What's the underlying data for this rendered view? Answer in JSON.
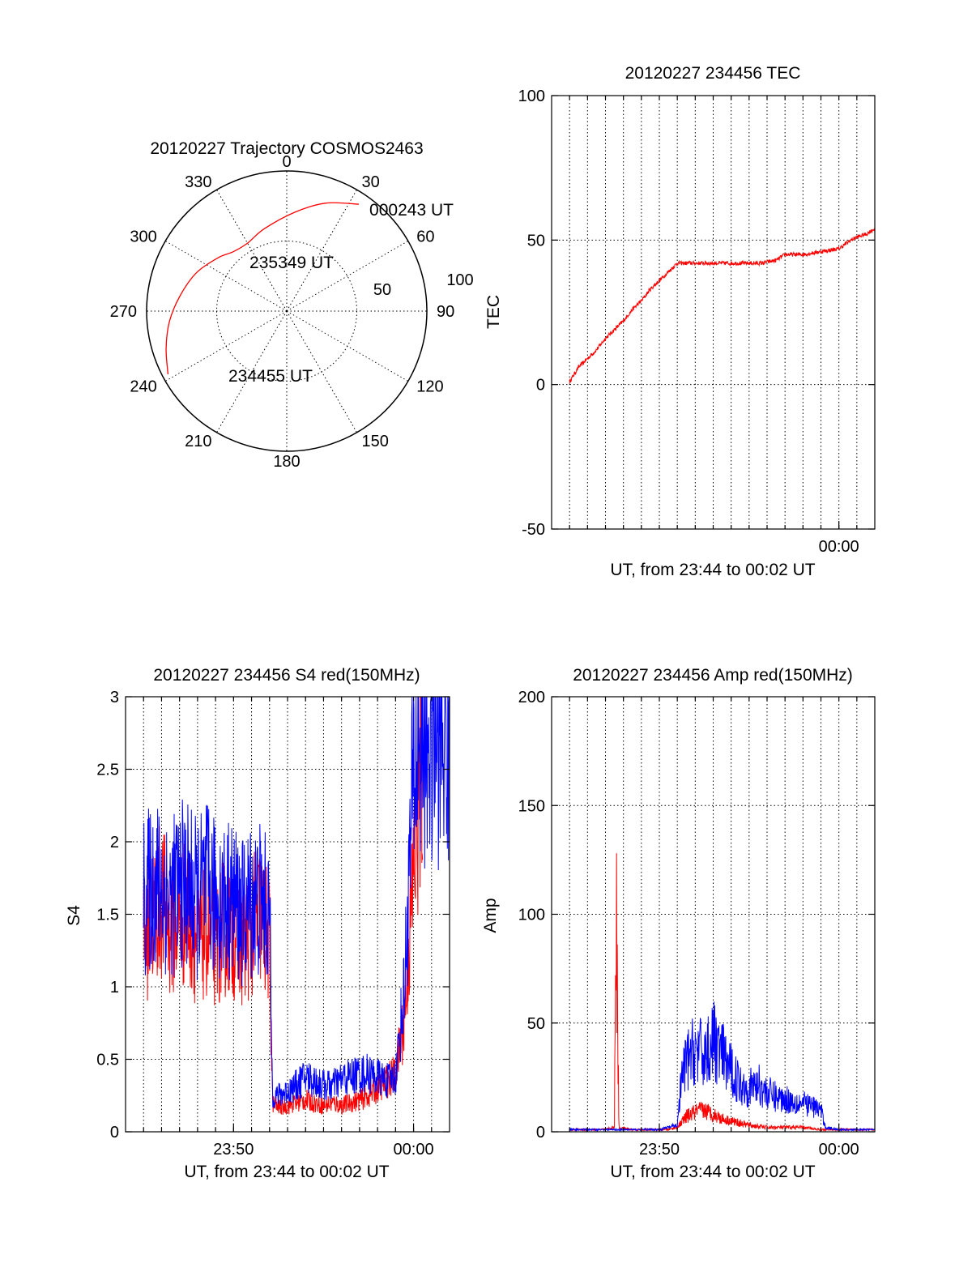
{
  "chart_data": [
    {
      "type": "polar",
      "title": "20120227 Trajectory COSMOS2463",
      "azimuth_labels": [
        "0",
        "30",
        "60",
        "90",
        "120",
        "150",
        "180",
        "210",
        "240",
        "270",
        "300",
        "330"
      ],
      "radius_labels": [
        "50",
        "100"
      ],
      "rlim": [
        0,
        100
      ],
      "grid": true,
      "colors": {
        "track": "#ff0000"
      },
      "series": [
        {
          "points": [
            {
              "azimuth": 242,
              "zenith": 96
            },
            {
              "azimuth": 253,
              "zenith": 90
            },
            {
              "azimuth": 265,
              "zenith": 84
            },
            {
              "azimuth": 278,
              "zenith": 77
            },
            {
              "azimuth": 293,
              "zenith": 70
            },
            {
              "azimuth": 308,
              "zenith": 62
            },
            {
              "azimuth": 318,
              "zenith": 57
            },
            {
              "azimuth": 330,
              "zenith": 56
            },
            {
              "azimuth": 345,
              "zenith": 61
            },
            {
              "azimuth": 5,
              "zenith": 71
            },
            {
              "azimuth": 20,
              "zenith": 82
            },
            {
              "azimuth": 34,
              "zenith": 92
            }
          ]
        }
      ],
      "annotations": [
        {
          "text": "234455 UT",
          "at": "start"
        },
        {
          "text": "235349 UT",
          "at": "middle"
        },
        {
          "text": "000243 UT",
          "at": "end"
        }
      ]
    },
    {
      "type": "line",
      "title": "20120227 234456 TEC",
      "xlabel": "UT, from 23:44 to 00:02 UT",
      "ylabel": "TEC",
      "xlim": [
        "23:44",
        "00:02"
      ],
      "ylim": [
        -50,
        100
      ],
      "yticks": [
        -50,
        0,
        50,
        100
      ],
      "xticklabels": [
        {
          "x": "00:00",
          "label": "00:00"
        }
      ],
      "grid": true,
      "colors": {
        "red": "#ff0000"
      },
      "series": [
        {
          "color": "red",
          "points": [
            [
              "23:45:00",
              1
            ],
            [
              "23:45:30",
              6
            ],
            [
              "23:46:00",
              9
            ],
            [
              "23:46:30",
              12
            ],
            [
              "23:47:00",
              16
            ],
            [
              "23:47:30",
              19
            ],
            [
              "23:48:00",
              22
            ],
            [
              "23:48:30",
              26
            ],
            [
              "23:49:00",
              29
            ],
            [
              "23:49:30",
              33
            ],
            [
              "23:50:00",
              36
            ],
            [
              "23:50:30",
              39
            ],
            [
              "23:51:00",
              42
            ],
            [
              "23:51:20",
              42
            ],
            [
              "23:52:00",
              42
            ],
            [
              "23:53:00",
              42
            ],
            [
              "23:54:00",
              42
            ],
            [
              "23:55:00",
              42
            ],
            [
              "23:55:40",
              42
            ],
            [
              "23:56:30",
              43
            ],
            [
              "23:57:00",
              45
            ],
            [
              "23:58:00",
              45
            ],
            [
              "23:59:00",
              46
            ],
            [
              "00:00:00",
              47
            ],
            [
              "00:00:40",
              50
            ],
            [
              "00:01:00",
              51
            ],
            [
              "00:01:30",
              52
            ],
            [
              "00:02:00",
              54
            ]
          ]
        }
      ]
    },
    {
      "type": "line",
      "title": "20120227 234456 S4 red(150MHz)",
      "xlabel": "UT, from 23:44 to 00:02 UT",
      "ylabel": "S4",
      "xlim": [
        "23:44",
        "00:02"
      ],
      "ylim": [
        0,
        3
      ],
      "yticks": [
        0,
        0.5,
        1,
        1.5,
        2,
        2.5,
        3
      ],
      "xticklabels": [
        {
          "x": "23:50",
          "label": "23:50"
        },
        {
          "x": "00:00",
          "label": "00:00"
        }
      ],
      "grid": true,
      "colors": {
        "red": "#ff0000",
        "blue": "#0000ff"
      },
      "series": [
        {
          "color": "red",
          "points": [
            [
              "23:45:00",
              1.3
            ],
            [
              "23:45:30",
              1.5
            ],
            [
              "23:46:00",
              1.6
            ],
            [
              "23:46:30",
              1.4
            ],
            [
              "23:47:00",
              1.5
            ],
            [
              "23:47:30",
              1.5
            ],
            [
              "23:48:00",
              1.3
            ],
            [
              "23:48:30",
              1.4
            ],
            [
              "23:49:00",
              1.3
            ],
            [
              "23:49:30",
              1.4
            ],
            [
              "23:50:00",
              1.4
            ],
            [
              "23:50:30",
              1.3
            ],
            [
              "23:51:00",
              1.4
            ],
            [
              "23:51:30",
              1.5
            ],
            [
              "23:52:00",
              1.3
            ],
            [
              "23:52:10",
              0.2
            ],
            [
              "23:52:30",
              0.17
            ],
            [
              "23:53:00",
              0.18
            ],
            [
              "23:53:30",
              0.2
            ],
            [
              "23:54:00",
              0.22
            ],
            [
              "23:54:30",
              0.2
            ],
            [
              "23:55:00",
              0.18
            ],
            [
              "23:55:30",
              0.2
            ],
            [
              "23:56:00",
              0.18
            ],
            [
              "23:56:30",
              0.2
            ],
            [
              "23:57:00",
              0.22
            ],
            [
              "23:57:30",
              0.25
            ],
            [
              "23:58:00",
              0.3
            ],
            [
              "23:58:30",
              0.35
            ],
            [
              "23:59:00",
              0.4
            ],
            [
              "23:59:30",
              0.8
            ],
            [
              "00:00:00",
              1.8
            ],
            [
              "00:00:30",
              2.6
            ]
          ]
        },
        {
          "color": "blue",
          "points": [
            [
              "23:45:00",
              1.6
            ],
            [
              "23:45:30",
              1.7
            ],
            [
              "23:46:00",
              1.7
            ],
            [
              "23:46:30",
              1.6
            ],
            [
              "23:47:00",
              1.7
            ],
            [
              "23:47:30",
              1.7
            ],
            [
              "23:48:00",
              1.6
            ],
            [
              "23:48:30",
              1.7
            ],
            [
              "23:49:00",
              1.6
            ],
            [
              "23:49:30",
              1.6
            ],
            [
              "23:50:00",
              1.6
            ],
            [
              "23:50:30",
              1.5
            ],
            [
              "23:51:00",
              1.6
            ],
            [
              "23:51:30",
              1.6
            ],
            [
              "23:52:00",
              1.5
            ],
            [
              "23:52:10",
              0.25
            ],
            [
              "23:52:30",
              0.25
            ],
            [
              "23:53:00",
              0.28
            ],
            [
              "23:53:30",
              0.32
            ],
            [
              "23:54:00",
              0.38
            ],
            [
              "23:54:30",
              0.35
            ],
            [
              "23:55:00",
              0.32
            ],
            [
              "23:55:30",
              0.32
            ],
            [
              "23:56:00",
              0.36
            ],
            [
              "23:56:30",
              0.38
            ],
            [
              "23:57:00",
              0.4
            ],
            [
              "23:57:30",
              0.4
            ],
            [
              "23:58:00",
              0.38
            ],
            [
              "23:58:30",
              0.35
            ],
            [
              "23:59:00",
              0.38
            ],
            [
              "23:59:30",
              1.0
            ],
            [
              "00:00:00",
              2.5
            ],
            [
              "00:00:30",
              2.8
            ],
            [
              "00:01:00",
              2.7
            ],
            [
              "00:01:30",
              2.8
            ],
            [
              "00:02:00",
              2.7
            ]
          ]
        }
      ]
    },
    {
      "type": "line",
      "title": "20120227 234456 Amp red(150MHz)",
      "xlabel": "UT, from 23:44 to 00:02 UT",
      "ylabel": "Amp",
      "xlim": [
        "23:44",
        "00:02"
      ],
      "ylim": [
        0,
        200
      ],
      "yticks": [
        0,
        50,
        100,
        150,
        200
      ],
      "xticklabels": [
        {
          "x": "23:50",
          "label": "23:50"
        },
        {
          "x": "00:00",
          "label": "00:00"
        }
      ],
      "grid": true,
      "colors": {
        "red": "#ff0000",
        "blue": "#0000ff"
      },
      "series": [
        {
          "color": "red",
          "points": [
            [
              "23:45:00",
              1
            ],
            [
              "23:46:00",
              1
            ],
            [
              "23:47:00",
              1
            ],
            [
              "23:47:30",
              2
            ],
            [
              "23:47:35",
              113
            ],
            [
              "23:47:40",
              60
            ],
            [
              "23:47:45",
              2
            ],
            [
              "23:48:30",
              1
            ],
            [
              "23:49:30",
              1
            ],
            [
              "23:50:30",
              1
            ],
            [
              "23:51:00",
              2
            ],
            [
              "23:51:30",
              7
            ],
            [
              "23:52:00",
              9
            ],
            [
              "23:52:30",
              10
            ],
            [
              "23:53:00",
              8
            ],
            [
              "23:53:30",
              6
            ],
            [
              "23:54:00",
              5
            ],
            [
              "23:54:30",
              4
            ],
            [
              "23:55:00",
              3
            ],
            [
              "23:56:00",
              2
            ],
            [
              "23:57:00",
              2
            ],
            [
              "23:58:00",
              2
            ],
            [
              "23:59:00",
              1
            ],
            [
              "00:00:00",
              1
            ],
            [
              "00:01:00",
              1
            ],
            [
              "00:02:00",
              1
            ]
          ]
        },
        {
          "color": "blue",
          "points": [
            [
              "23:45:00",
              1
            ],
            [
              "23:46:00",
              1
            ],
            [
              "23:47:00",
              1
            ],
            [
              "23:48:00",
              1
            ],
            [
              "23:49:00",
              1
            ],
            [
              "23:50:00",
              1
            ],
            [
              "23:51:00",
              3
            ],
            [
              "23:51:15",
              25
            ],
            [
              "23:51:30",
              32
            ],
            [
              "23:52:00",
              38
            ],
            [
              "23:52:30",
              35
            ],
            [
              "23:53:00",
              42
            ],
            [
              "23:53:30",
              35
            ],
            [
              "23:54:00",
              28
            ],
            [
              "23:54:30",
              22
            ],
            [
              "23:55:00",
              20
            ],
            [
              "23:55:30",
              22
            ],
            [
              "23:56:00",
              18
            ],
            [
              "23:56:30",
              16
            ],
            [
              "23:57:00",
              15
            ],
            [
              "23:57:30",
              14
            ],
            [
              "23:58:00",
              13
            ],
            [
              "23:58:30",
              12
            ],
            [
              "23:59:00",
              10
            ],
            [
              "23:59:15",
              2
            ],
            [
              "00:00:00",
              1
            ],
            [
              "00:01:00",
              1
            ],
            [
              "00:02:00",
              1
            ]
          ]
        }
      ]
    }
  ]
}
